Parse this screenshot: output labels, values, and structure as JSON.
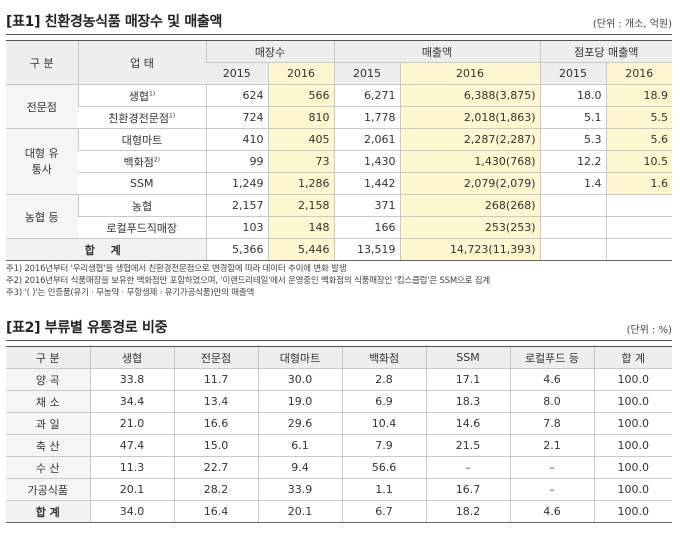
{
  "table1": {
    "title": "[표1] 친환경농식품 매장수 및 매출액",
    "unit": "(단위 : 개소, 억원)",
    "headers": {
      "category": "구 분",
      "business": "업 태",
      "stores": "매장수",
      "sales": "매출액",
      "per_store": "점포당 매출액",
      "y2015": "2015",
      "y2016": "2016"
    },
    "groups": [
      {
        "name": "전문점",
        "rows": [
          {
            "type": "생협",
            "note": "1)",
            "s15": "624",
            "s16": "566",
            "m15": "6,271",
            "m16": "6,388(3,875)",
            "p15": "18.0",
            "p16": "18.9"
          },
          {
            "type": "친환경전문점",
            "note": "1)",
            "s15": "724",
            "s16": "810",
            "m15": "1,778",
            "m16": "2,018(1,863)",
            "p15": "5.1",
            "p16": "5.5"
          }
        ]
      },
      {
        "name": "대형 유통사",
        "rows": [
          {
            "type": "대형마트",
            "note": "",
            "s15": "410",
            "s16": "405",
            "m15": "2,061",
            "m16": "2,287(2,287)",
            "p15": "5.3",
            "p16": "5.6"
          },
          {
            "type": "백화점",
            "note": "2)",
            "s15": "99",
            "s16": "73",
            "m15": "1,430",
            "m16": "1,430(768)",
            "p15": "12.2",
            "p16": "10.5"
          },
          {
            "type": "SSM",
            "note": "",
            "s15": "1,249",
            "s16": "1,286",
            "m15": "1,442",
            "m16": "2,079(2,079)",
            "p15": "1.4",
            "p16": "1.6"
          }
        ]
      },
      {
        "name": "농협 등",
        "rows": [
          {
            "type": "농협",
            "note": "",
            "s15": "2,157",
            "s16": "2,158",
            "m15": "371",
            "m16": "268(268)",
            "p15": "",
            "p16": ""
          },
          {
            "type": "로컬푸드직매장",
            "note": "",
            "s15": "103",
            "s16": "148",
            "m15": "166",
            "m16": "253(253)",
            "p15": "",
            "p16": ""
          }
        ]
      }
    ],
    "total": {
      "label": "합 계",
      "s15": "5,366",
      "s16": "5,446",
      "m15": "13,519",
      "m16": "14,723(11,393)"
    }
  },
  "notes": [
    "주1) 2016년부터 '우리생협'을 생협에서 친환경전문점으로 변경함에 따라 데이터 추이에 변화 발생",
    "주2) 2016년부터 식품매장을 보유한 백화점만 포함하였으며, '이랜드리테일'에서 운영중인 백화점의 식품매장인 '킴스클럽'은 SSM으로 집계",
    "주3) '( )'는 인증품(유기 · 무농약 · 무항생제 · 유기가공식품)만의 매출액"
  ],
  "table2": {
    "title": "[표2] 부류별 유통경로 비중",
    "unit": "(단위 : %)",
    "headers": [
      "구 분",
      "생협",
      "전문점",
      "대형마트",
      "백화점",
      "SSM",
      "로컬푸드 등",
      "합 계"
    ],
    "rows": [
      {
        "name": "양 곡",
        "v": [
          "33.8",
          "11.7",
          "30.0",
          "2.8",
          "17.1",
          "4.6",
          "100.0"
        ]
      },
      {
        "name": "채 소",
        "v": [
          "34.4",
          "13.4",
          "19.0",
          "6.9",
          "18.3",
          "8.0",
          "100.0"
        ]
      },
      {
        "name": "과 일",
        "v": [
          "21.0",
          "16.6",
          "29.6",
          "10.4",
          "14.6",
          "7.8",
          "100.0"
        ]
      },
      {
        "name": "축 산",
        "v": [
          "47.4",
          "15.0",
          "6.1",
          "7.9",
          "21.5",
          "2.1",
          "100.0"
        ]
      },
      {
        "name": "수 산",
        "v": [
          "11.3",
          "22.7",
          "9.4",
          "56.6",
          "–",
          "–",
          "100.0"
        ]
      },
      {
        "name": "가공식품",
        "v": [
          "20.1",
          "28.2",
          "33.9",
          "1.1",
          "16.7",
          "–",
          "100.0"
        ]
      },
      {
        "name": "합 계",
        "v": [
          "34.0",
          "16.4",
          "20.1",
          "6.7",
          "18.2",
          "4.6",
          "100.0"
        ]
      }
    ]
  }
}
